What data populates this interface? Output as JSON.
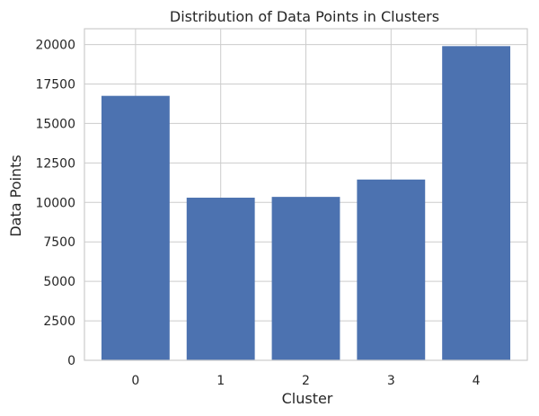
{
  "chart_data": {
    "type": "bar",
    "title": "Distribution of Data Points in Clusters",
    "xlabel": "Cluster",
    "ylabel": "Data Points",
    "categories": [
      "0",
      "1",
      "2",
      "3",
      "4"
    ],
    "values": [
      16750,
      10300,
      10350,
      11450,
      19900
    ],
    "ylim": [
      0,
      21000
    ],
    "yticks": [
      0,
      2500,
      5000,
      7500,
      10000,
      12500,
      15000,
      17500,
      20000
    ],
    "ytick_labels": [
      "0",
      "2500",
      "5000",
      "7500",
      "10000",
      "12500",
      "15000",
      "17500",
      "20000"
    ],
    "grid": true,
    "legend": "none",
    "bar_color": "#4c72b0",
    "grid_color": "#cccccc",
    "background_color": "#ffffff"
  }
}
